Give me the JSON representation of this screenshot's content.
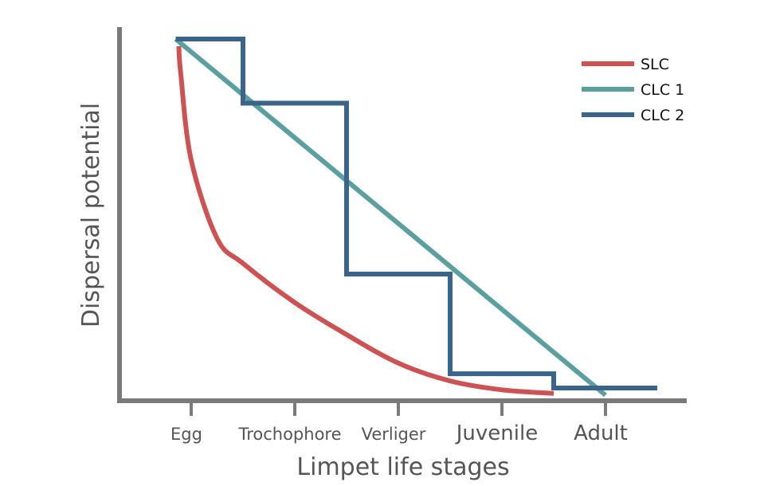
{
  "chart_data": {
    "type": "line",
    "title": "",
    "xlabel": "Limpet life stages",
    "ylabel": "Dispersal potential",
    "categories": [
      "Egg",
      "Trochophore",
      "Verliger",
      "Juvenile",
      "Adult"
    ],
    "ylim": [
      0,
      1
    ],
    "grid": false,
    "legend_position": "top-right",
    "series": [
      {
        "name": "SLC",
        "color": "#cd5254",
        "style": "smooth-decay",
        "x": [
          -0.12,
          -0.1,
          0.0,
          0.25,
          0.5,
          1.0,
          1.5,
          2.0,
          2.5,
          3.0,
          3.5
        ],
        "y": [
          0.98,
          0.9,
          0.66,
          0.44,
          0.37,
          0.26,
          0.17,
          0.09,
          0.04,
          0.015,
          0.005
        ]
      },
      {
        "name": "CLC 1",
        "color": "#5b9fa0",
        "style": "straight",
        "x": [
          -0.15,
          4.0
        ],
        "y": [
          1.0,
          0.0
        ]
      },
      {
        "name": "CLC 2",
        "color": "#3a6489",
        "style": "step",
        "x": [
          -0.15,
          0.5,
          0.5,
          1.5,
          1.5,
          2.5,
          2.5,
          3.5,
          3.5,
          4.5
        ],
        "y": [
          1.0,
          1.0,
          0.82,
          0.82,
          0.34,
          0.34,
          0.06,
          0.06,
          0.02,
          0.02
        ]
      }
    ]
  }
}
